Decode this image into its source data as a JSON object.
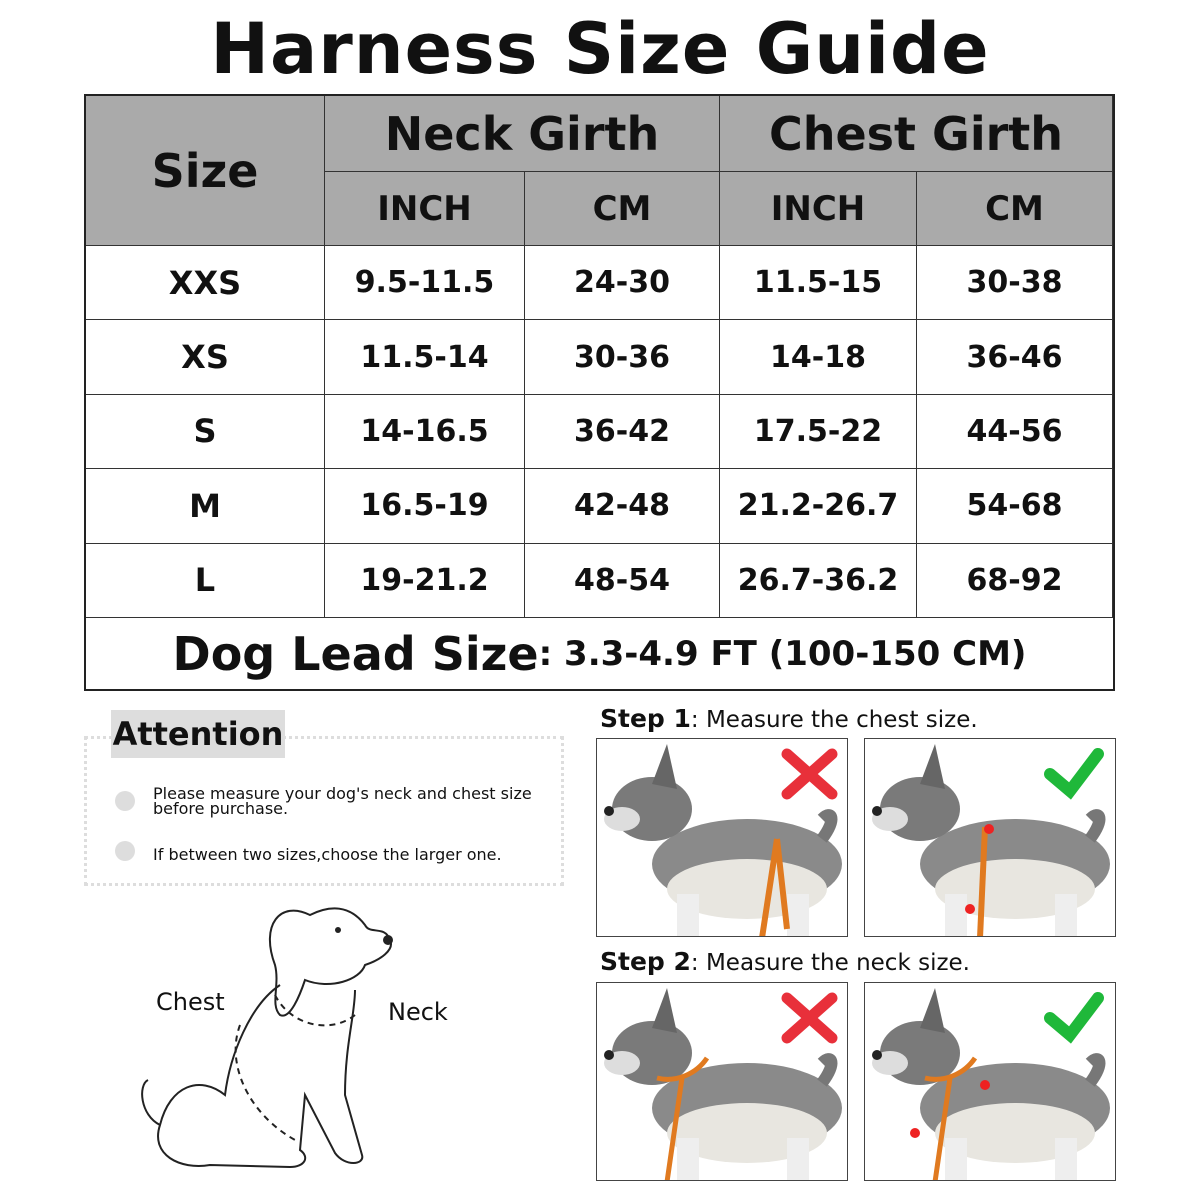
{
  "title": "Harness Size Guide",
  "table": {
    "size_header": "Size",
    "groups": [
      "Neck Girth",
      "Chest Girth"
    ],
    "units": [
      "INCH",
      "CM",
      "INCH",
      "CM"
    ],
    "rows": [
      [
        "XXS",
        "9.5-11.5",
        "24-30",
        "11.5-15",
        "30-38"
      ],
      [
        "XS",
        "11.5-14",
        "30-36",
        "14-18",
        "36-46"
      ],
      [
        "S",
        "14-16.5",
        "36-42",
        "17.5-22",
        "44-56"
      ],
      [
        "M",
        "16.5-19",
        "42-48",
        "21.2-26.7",
        "54-68"
      ],
      [
        "L",
        "19-21.2",
        "48-54",
        "26.7-36.2",
        "68-92"
      ]
    ],
    "lead_label": "Dog Lead Size",
    "lead_value": ": 3.3-4.9 FT (100-150 CM)"
  },
  "attention": {
    "title": "Attention",
    "items": [
      "Please measure your dog's neck and chest size before purchase.",
      "If between two sizes,choose the larger one."
    ]
  },
  "diagram": {
    "chest": "Chest",
    "neck": "Neck"
  },
  "steps": [
    {
      "label": "Step 1",
      "text": ": Measure the chest size."
    },
    {
      "label": "Step 2",
      "text": ": Measure the neck size."
    }
  ],
  "colors": {
    "header": "#aaaaaa",
    "wrong": "#e8303a",
    "right": "#1fb83a",
    "strap": "#e07a20"
  }
}
